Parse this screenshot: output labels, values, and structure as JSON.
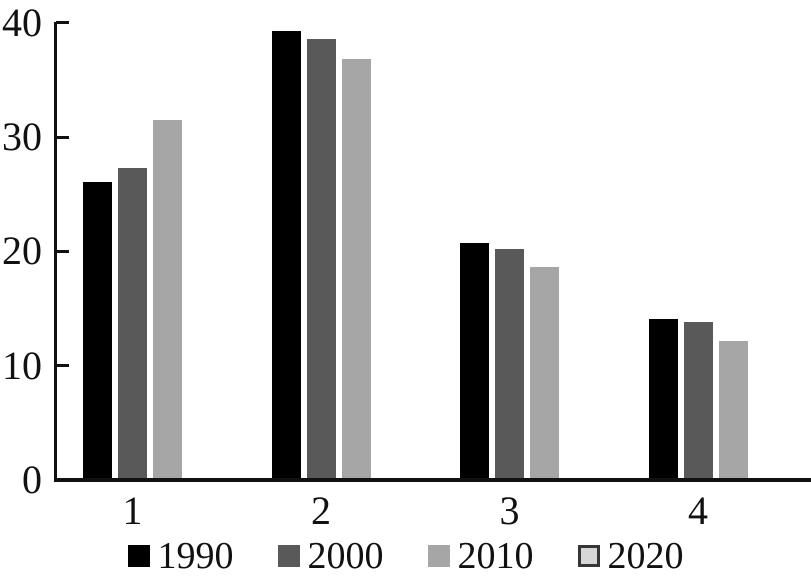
{
  "chart_data": {
    "type": "bar",
    "title": "",
    "xlabel": "",
    "ylabel": "",
    "categories": [
      "1",
      "2",
      "3",
      "4"
    ],
    "series": [
      {
        "name": "1990",
        "color": "#000000",
        "values": [
          26.1,
          39.3,
          20.7,
          14.1
        ]
      },
      {
        "name": "2000",
        "color": "#595959",
        "values": [
          27.3,
          38.6,
          20.2,
          13.8
        ]
      },
      {
        "name": "2010",
        "color": "#a6a6a6",
        "values": [
          31.5,
          36.8,
          18.6,
          12.2
        ]
      },
      {
        "name": "2020",
        "color": "#d6d6d6",
        "swatch_border": "#363636",
        "values": [
          null,
          null,
          null,
          null
        ],
        "note": "shown in legend only; no bars visible in the plot"
      }
    ],
    "ylim": [
      0,
      40
    ],
    "yticks": [
      0,
      10,
      20,
      30,
      40
    ],
    "grid": false,
    "legend_position": "bottom",
    "tick_style": "inward"
  },
  "colors": {
    "axis": "#111111",
    "text": "#111111",
    "background": "#ffffff"
  }
}
